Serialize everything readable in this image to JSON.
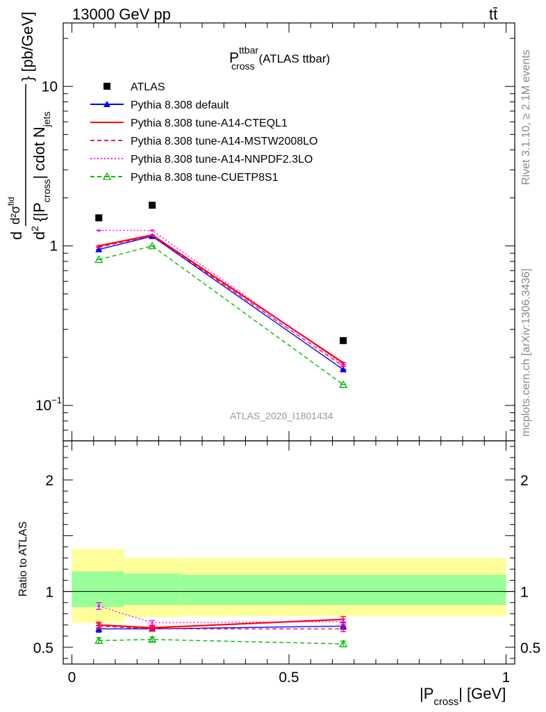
{
  "header": {
    "left": "13000 GeV pp",
    "right": "tt̄"
  },
  "side_texts": {
    "rivet": "Rivet 3.1.10, ≥ 2.1M events",
    "mcplots": "mcplots.cern.ch [arXiv:1306.3436]"
  },
  "chart_data": [
    {
      "type": "scatter",
      "title_main": "P",
      "title_sup": "ttbar",
      "title_sub": "cross",
      "title_suffix": "(ATLAS ttbar)",
      "watermark": "ATLAS_2020_I1801434",
      "ylabel": "d²σ^fid / d²{|P_cross| cdot N_jets} [pb/GeV]",
      "yscale": "log",
      "ylim": [
        0.06,
        25
      ],
      "xlim": [
        -0.02,
        1.02
      ],
      "yticks": [
        {
          "value": 10,
          "base": "10",
          "exp": ""
        },
        {
          "value": 1,
          "base": "1",
          "exp": ""
        },
        {
          "value": 0.1,
          "base": "10",
          "exp": "−1"
        }
      ],
      "series": [
        {
          "name": "ATLAS",
          "color": "#000000",
          "marker": "square",
          "line": "none",
          "x": [
            0.062,
            0.185,
            0.625
          ],
          "y": [
            1.5,
            1.8,
            0.255
          ]
        },
        {
          "name": "Pythia 8.308 default",
          "color": "#0000ff",
          "marker": "triangle-filled",
          "line": "solid",
          "x": [
            0.062,
            0.185,
            0.625
          ],
          "y": [
            0.95,
            1.15,
            0.168
          ]
        },
        {
          "name": "Pythia 8.308 tune-A14-CTEQL1",
          "color": "#ff0000",
          "marker": "none",
          "line": "solid",
          "x": [
            0.062,
            0.185,
            0.625
          ],
          "y": [
            1.0,
            1.17,
            0.185
          ]
        },
        {
          "name": "Pythia 8.308 tune-A14-MSTW2008LO",
          "color": "#ff0066",
          "marker": "none",
          "line": "dashed",
          "x": [
            0.062,
            0.185,
            0.625
          ],
          "y": [
            0.98,
            1.16,
            0.176
          ]
        },
        {
          "name": "Pythia 8.308 tune-A14-NNPDF2.3LO",
          "color": "#ff00ff",
          "marker": "none",
          "line": "dotted",
          "x": [
            0.062,
            0.185,
            0.625
          ],
          "y": [
            1.25,
            1.25,
            0.18
          ]
        },
        {
          "name": "Pythia 8.308 tune-CUETP8S1",
          "color": "#00bb00",
          "marker": "triangle-open",
          "line": "dashed",
          "x": [
            0.062,
            0.185,
            0.625
          ],
          "y": [
            0.82,
            1.0,
            0.135
          ]
        }
      ]
    },
    {
      "type": "scatter",
      "ylabel": "Ratio to ATLAS",
      "xlabel_main": "|P",
      "xlabel_sub": "cross",
      "xlabel_suffix": "| [GeV]",
      "ylim": [
        0.35,
        2.35
      ],
      "xlim": [
        -0.02,
        1.02
      ],
      "xticks": [
        0,
        0.5,
        1
      ],
      "xtick_labels": [
        "0",
        "0.5",
        "1"
      ],
      "yticks": [
        0.5,
        1,
        2
      ],
      "ytick_labels": [
        "0.5",
        "1",
        "2"
      ],
      "bands": [
        {
          "x0": 0.0,
          "x1": 0.12,
          "inner": [
            0.86,
            1.18
          ],
          "outer": [
            0.72,
            1.38
          ]
        },
        {
          "x0": 0.12,
          "x1": 0.25,
          "inner": [
            0.88,
            1.16
          ],
          "outer": [
            0.77,
            1.3
          ]
        },
        {
          "x0": 0.25,
          "x1": 1.0,
          "inner": [
            0.88,
            1.15
          ],
          "outer": [
            0.78,
            1.3
          ]
        }
      ],
      "band_colors": {
        "inner": "#99ff99",
        "outer": "#ffff99"
      },
      "series": [
        {
          "name": "Pythia 8.308 default",
          "color": "#0000ff",
          "marker": "triangle-filled",
          "line": "solid",
          "x": [
            0.062,
            0.185,
            0.625
          ],
          "y": [
            0.665,
            0.665,
            0.69
          ],
          "err": [
            0.03,
            0.02,
            0.03
          ]
        },
        {
          "name": "Pythia 8.308 tune-A14-CTEQL1",
          "color": "#ff0000",
          "marker": "none",
          "line": "solid",
          "x": [
            0.062,
            0.185,
            0.625
          ],
          "y": [
            0.7,
            0.675,
            0.75
          ],
          "err": [
            0.025,
            0.02,
            0.025
          ]
        },
        {
          "name": "Pythia 8.308 tune-A14-MSTW2008LO",
          "color": "#ff0066",
          "marker": "none",
          "line": "dashed",
          "x": [
            0.062,
            0.185,
            0.625
          ],
          "y": [
            0.69,
            0.665,
            0.665
          ],
          "err": [
            0.025,
            0.02,
            0.025
          ]
        },
        {
          "name": "Pythia 8.308 tune-A14-NNPDF2.3LO",
          "color": "#ff00ff",
          "marker": "none",
          "line": "dotted",
          "x": [
            0.062,
            0.185,
            0.625
          ],
          "y": [
            0.87,
            0.72,
            0.73
          ],
          "err": [
            0.03,
            0.02,
            0.025
          ]
        },
        {
          "name": "Pythia 8.308 tune-CUETP8S1",
          "color": "#00bb00",
          "marker": "triangle-open",
          "line": "dashed",
          "x": [
            0.062,
            0.185,
            0.625
          ],
          "y": [
            0.56,
            0.57,
            0.53
          ],
          "err": [
            0.025,
            0.02,
            0.025
          ]
        }
      ]
    }
  ]
}
